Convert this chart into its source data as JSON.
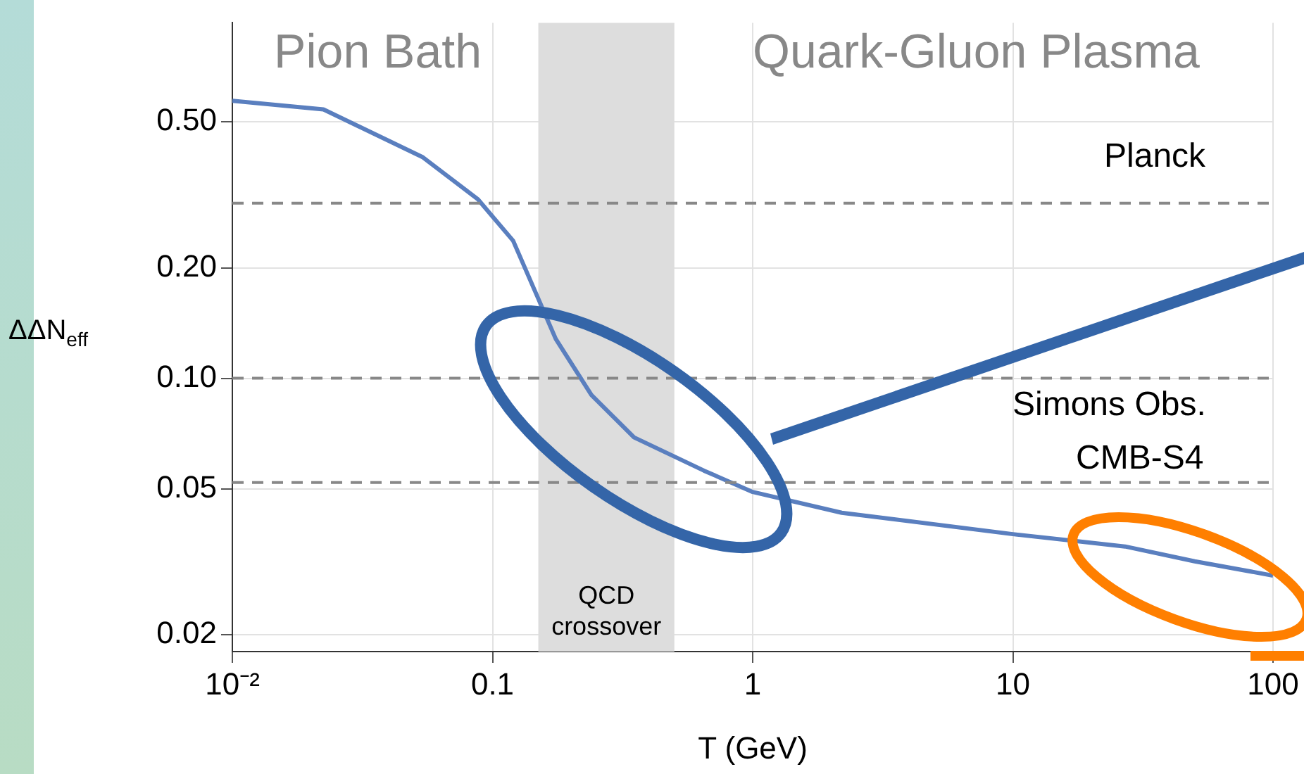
{
  "chart_data": {
    "type": "line",
    "xlabel": "T (GeV)",
    "ylabel": "ΔΔN$_{eff}$",
    "log": "xy",
    "grid": true,
    "legend": false,
    "marker": "none",
    "line_style": "solid",
    "x": [
      0.01,
      0.0224,
      0.054,
      0.088,
      0.12,
      0.145,
      0.175,
      0.24,
      0.35,
      0.65,
      1,
      2.2,
      10,
      27,
      50,
      100
    ],
    "series": [
      {
        "color": "#5a7fbf",
        "values": [
          0.57,
          0.54,
          0.4,
          0.307,
          0.237,
          0.174,
          0.128,
          0.09,
          0.069,
          0.056,
          0.049,
          0.043,
          0.0376,
          0.0348,
          0.0317,
          0.029
        ]
      }
    ],
    "xlim": [
      0.01,
      100
    ],
    "xticks": [
      {
        "value": 0.01,
        "label": "10⁻²"
      },
      0.1,
      1,
      10,
      100
    ],
    "ylim": [
      0.018,
      0.93
    ],
    "yticks": [
      {
        "value": 0.5,
        "label": "0.50"
      },
      {
        "value": 0.2,
        "label": "0.20"
      },
      {
        "value": 0.1,
        "label": "0.10"
      },
      0.05,
      0.02
    ],
    "ref_lines": [
      {
        "axis": "y",
        "value": 0.3,
        "label": "Planck",
        "color": "#888888",
        "line_style": "dashed"
      },
      {
        "axis": "y",
        "value": 0.1,
        "label": "Simons Obs.",
        "color": "#888888",
        "line_style": "dashed"
      },
      {
        "axis": "y",
        "value": 0.052,
        "label": "CMB-S4",
        "color": "#888888",
        "line_style": "dashed"
      }
    ],
    "bands": [
      {
        "axis": "x",
        "from": 0.15,
        "to": 0.5,
        "label": "QCD crossover",
        "color": "#dddddd"
      }
    ],
    "annotations": [
      "Pion Bath",
      "Quark-Gluon Plasma"
    ]
  }
}
